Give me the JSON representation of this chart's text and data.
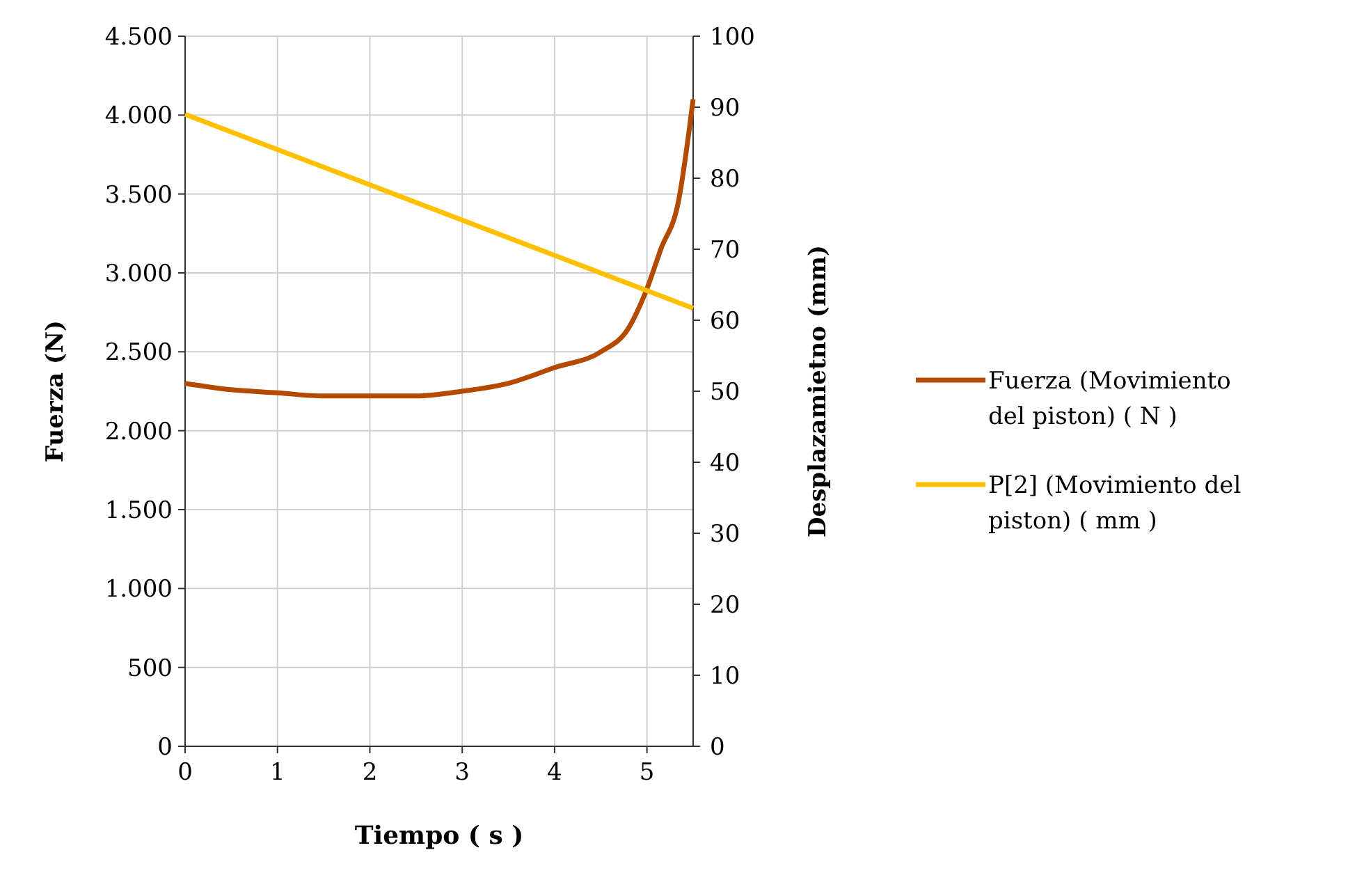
{
  "chart_data": {
    "type": "line",
    "xlabel": "Tiempo ( s )",
    "ylabel": "Fuerza (N)",
    "y2label": "Desplazamietno (mm)",
    "xlim": [
      0,
      5.5
    ],
    "xticks": [
      0,
      1,
      2,
      3,
      4,
      5
    ],
    "ylim": [
      0,
      4500
    ],
    "yticks": [
      0,
      {
        "value": 500,
        "label": "500"
      },
      {
        "value": 1000,
        "label": "1.000"
      },
      {
        "value": 1500,
        "label": "1.500"
      },
      {
        "value": 2000,
        "label": "2.000"
      },
      {
        "value": 2500,
        "label": "2.500"
      },
      {
        "value": 3000,
        "label": "3.000"
      },
      {
        "value": 3500,
        "label": "3.500"
      },
      {
        "value": 4000,
        "label": "4.000"
      },
      {
        "value": 4500,
        "label": "4.500"
      }
    ],
    "y2lim": [
      0,
      100
    ],
    "y2ticks": [
      0,
      10,
      20,
      30,
      40,
      50,
      60,
      70,
      80,
      90,
      100
    ],
    "grid": true,
    "legend": "right",
    "marker": "none",
    "line_style": "solid",
    "series": [
      {
        "name": "Fuerza (Movimiento del piston) ( N )",
        "color": "#b34a00",
        "x": [
          0,
          0.5,
          1,
          1.5,
          2,
          2.5,
          3,
          3.5,
          4,
          4.5,
          4.8,
          5,
          5.15,
          5.34,
          5.5
        ],
        "values": [
          2300,
          2260,
          2240,
          2220,
          2220,
          2220,
          2250,
          2300,
          2400,
          2500,
          2650,
          2900,
          3150,
          3450,
          4100
        ]
      },
      {
        "name": "P[2] (Movimiento del piston) ( mm )",
        "color": "#ffc000",
        "axis": "y2",
        "x": [
          0,
          5.5
        ],
        "values": [
          89,
          61.7
        ]
      }
    ]
  }
}
